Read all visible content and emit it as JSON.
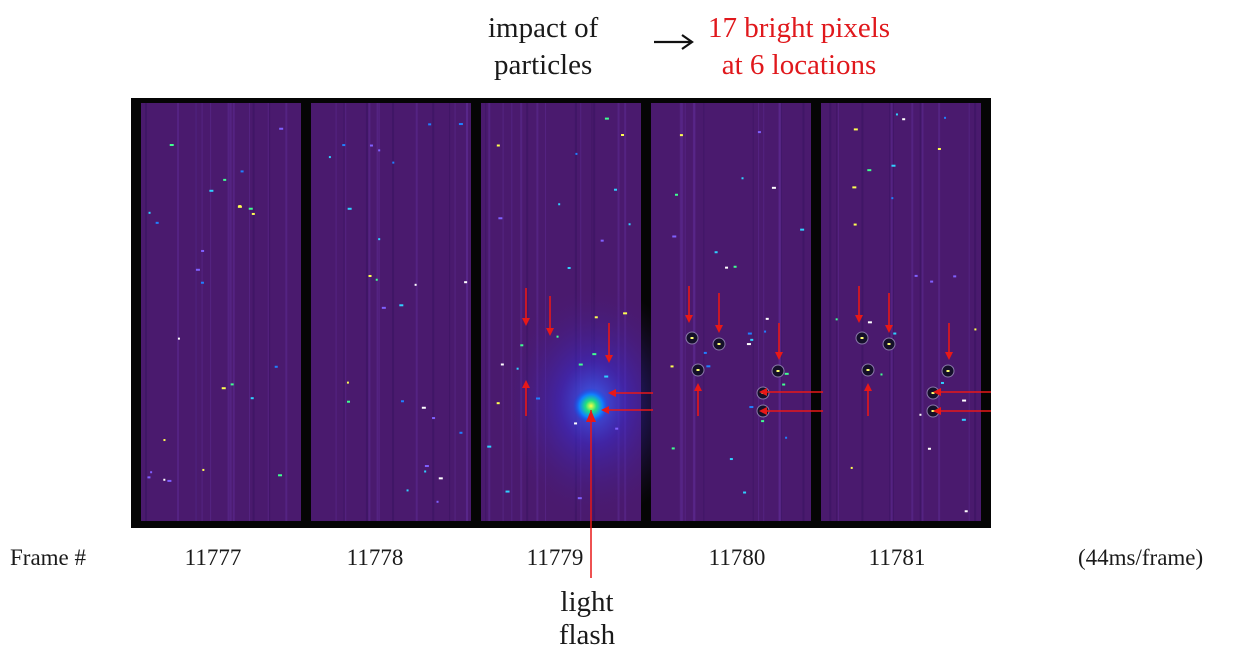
{
  "header": {
    "impact_line1": "impact of",
    "impact_line2": "particles",
    "result_line1": "17 bright pixels",
    "result_line2": "at 6 locations",
    "result_color": "#e0181c"
  },
  "axis": {
    "frame_label": "Frame #",
    "frames": [
      "11777",
      "11778",
      "11779",
      "11780",
      "11781"
    ],
    "rate": "(44ms/frame)"
  },
  "annotation": {
    "flash_line1": "light",
    "flash_line2": "flash"
  },
  "colors": {
    "sensor_bg": "#4a1a6e",
    "frame_border": "#050505",
    "arrow": "#e81818"
  }
}
